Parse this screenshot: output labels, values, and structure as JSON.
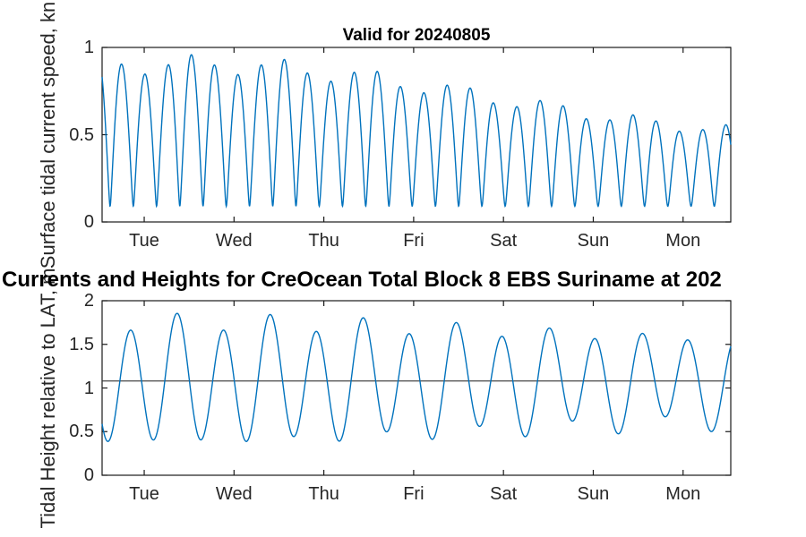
{
  "figure": {
    "main_title": "Currents and Heights for CreOcean Total Block 8 EBS Suriname at 202",
    "background": "#ffffff",
    "axis_color": "#1a1a1a",
    "text_color": "#262626",
    "line_color": "#0072BD"
  },
  "chart_data": [
    {
      "id": "surface-current-speed",
      "type": "line",
      "title": "Valid for 20240805",
      "ylabel": "Surface tidal current speed, kn",
      "ylim": [
        0,
        1
      ],
      "yticks": [
        0,
        0.5,
        1
      ],
      "ytick_labels": [
        "0",
        "0.5",
        "1"
      ],
      "xtick_labels": [
        "Tue",
        "Wed",
        "Thu",
        "Fri",
        "Sat",
        "Sun",
        "Mon"
      ],
      "x_range_days_rel_tue": [
        -0.469,
        6.531
      ],
      "grid": false,
      "legend": null,
      "line_color": "#0072BD",
      "approx_peaks_kn": [
        0.87,
        0.81,
        0.87,
        0.95,
        0.87,
        0.81,
        0.85,
        0.9,
        0.84,
        0.79,
        0.81,
        0.83,
        0.8,
        0.79,
        0.76,
        0.72,
        0.7,
        0.67,
        0.63,
        0.62,
        0.59,
        0.55,
        0.52,
        0.5,
        0.52,
        0.49,
        0.45
      ],
      "approx_slack_min_kn": 0.09,
      "series_model": {
        "kind": "speed",
        "residual_kn": 0.09,
        "envelope_base": 0.7,
        "envelope_springneap_amp": 0.2,
        "springneap_center_day": 0.45,
        "springneap_period_days": 14,
        "diurnal_inequality_frac": 0.06,
        "diurnal_peak_day": 0.526,
        "diurnal_period_days": 0.9973,
        "semidiurnal_period_days": 0.5175,
        "slack_time_day": -0.38
      }
    },
    {
      "id": "tidal-height",
      "type": "line",
      "title": "",
      "ylabel": "Tidal Height relative to LAT, m",
      "ylim": [
        0,
        2
      ],
      "yticks": [
        0,
        0.5,
        1,
        1.5,
        2
      ],
      "ytick_labels": [
        "0",
        "0.5",
        "1",
        "1.5",
        "2"
      ],
      "xtick_labels": [
        "Tue",
        "Wed",
        "Thu",
        "Fri",
        "Sat",
        "Sun",
        "Mon"
      ],
      "x_range_days_rel_tue": [
        -0.469,
        6.531
      ],
      "grid": false,
      "legend": null,
      "line_color": "#0072BD",
      "reference_line_m": 1.08,
      "approx_high_waters_m": [
        1.66,
        1.84,
        1.68,
        1.79,
        1.67,
        1.72,
        1.65,
        1.71,
        1.62,
        1.63,
        1.51,
        1.58,
        1.43,
        1.52
      ],
      "approx_low_waters_m": [
        0.3,
        0.51,
        0.33,
        0.38,
        0.5,
        0.39,
        0.47,
        0.52,
        0.41,
        0.52,
        0.6,
        0.52,
        0.65
      ],
      "series_model": {
        "kind": "height",
        "mean_m": 1.08,
        "m2_amp_base": 0.575,
        "m2_amp_mod": 0.105,
        "springneap_center_day": 0.35,
        "springneap_period_days": 14.5,
        "semidiurnal_period_days": 0.5175,
        "low_water_time_day": -0.41,
        "diurnal_amp_m": 0.095,
        "diurnal_peak_day": 0.367,
        "diurnal_period_days": 1.0758
      }
    }
  ]
}
